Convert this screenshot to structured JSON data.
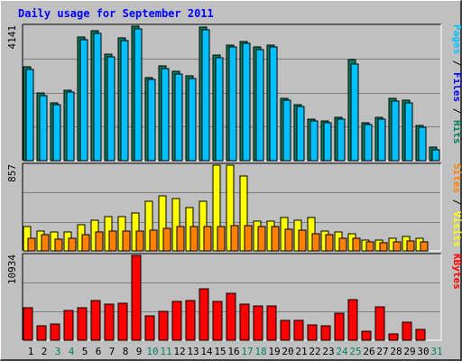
{
  "chart_data": [
    {
      "type": "bar",
      "title": "Daily usage for September 2011",
      "categories": [
        "1",
        "2",
        "3",
        "4",
        "5",
        "6",
        "7",
        "8",
        "9",
        "10",
        "11",
        "12",
        "13",
        "14",
        "15",
        "16",
        "17",
        "18",
        "19",
        "20",
        "21",
        "22",
        "23",
        "24",
        "25",
        "26",
        "27",
        "28",
        "29",
        "30",
        "31"
      ],
      "weekend_days": [
        "3",
        "4",
        "10",
        "11",
        "17",
        "18",
        "24",
        "25",
        "31"
      ],
      "y_tick_label": "4141",
      "ylim": [
        0,
        4141
      ],
      "legend": [
        "Pages",
        "Files",
        "Hits"
      ],
      "series": [
        {
          "name": "Hits",
          "color": "#00805c",
          "values": [
            2900,
            2090,
            1780,
            2180,
            3800,
            4000,
            3270,
            3790,
            4141,
            2570,
            2910,
            2750,
            2610,
            4100,
            3250,
            3570,
            3670,
            3500,
            3570,
            1930,
            1730,
            1280,
            1230,
            1340,
            3100,
            1180,
            1340,
            1910,
            1850,
            1090,
            420
          ]
        },
        {
          "name": "Files",
          "color": "#00c0ff",
          "values": [
            2810,
            2010,
            1710,
            2110,
            3730,
            3930,
            3190,
            3710,
            4060,
            2490,
            2840,
            2680,
            2540,
            4030,
            3180,
            3500,
            3600,
            3430,
            3500,
            1860,
            1660,
            1210,
            1160,
            1270,
            2960,
            1110,
            1270,
            1840,
            1780,
            1020,
            340
          ]
        }
      ],
      "grid": true
    },
    {
      "type": "bar",
      "categories": [
        "1",
        "2",
        "3",
        "4",
        "5",
        "6",
        "7",
        "8",
        "9",
        "10",
        "11",
        "12",
        "13",
        "14",
        "15",
        "16",
        "17",
        "18",
        "19",
        "20",
        "21",
        "22",
        "23",
        "24",
        "25",
        "26",
        "27",
        "28",
        "29",
        "30",
        "31"
      ],
      "y_tick_label": "857",
      "ylim": [
        0,
        857
      ],
      "legend": [
        "Sites",
        "Visits"
      ],
      "series": [
        {
          "name": "Visits",
          "color": "#ffff00",
          "values": [
            240,
            200,
            190,
            190,
            260,
            310,
            340,
            340,
            380,
            500,
            550,
            520,
            430,
            500,
            857,
            857,
            750,
            300,
            300,
            330,
            310,
            330,
            200,
            190,
            170,
            110,
            110,
            130,
            140,
            130,
            0
          ]
        },
        {
          "name": "Sites",
          "color": "#ff8000",
          "values": [
            130,
            160,
            120,
            130,
            160,
            190,
            200,
            200,
            200,
            210,
            230,
            240,
            240,
            240,
            240,
            250,
            250,
            240,
            240,
            220,
            210,
            170,
            160,
            130,
            130,
            90,
            80,
            90,
            100,
            90,
            0
          ]
        }
      ],
      "grid": true
    },
    {
      "type": "bar",
      "categories": [
        "1",
        "2",
        "3",
        "4",
        "5",
        "6",
        "7",
        "8",
        "9",
        "10",
        "11",
        "12",
        "13",
        "14",
        "15",
        "16",
        "17",
        "18",
        "19",
        "20",
        "21",
        "22",
        "23",
        "24",
        "25",
        "26",
        "27",
        "28",
        "29",
        "30",
        "31"
      ],
      "y_tick_label": "10934",
      "ylim": [
        0,
        10934
      ],
      "legend": [
        "KBytes"
      ],
      "series": [
        {
          "name": "KBytes",
          "color": "#ff0000",
          "values": [
            4200,
            1900,
            2100,
            3800,
            4200,
            5100,
            4700,
            4800,
            10934,
            3100,
            3700,
            5000,
            5100,
            6600,
            5000,
            6100,
            4700,
            4400,
            4400,
            2600,
            2600,
            2000,
            1900,
            3500,
            5200,
            1200,
            4300,
            800,
            2300,
            1400,
            0
          ]
        }
      ],
      "grid": true
    }
  ],
  "colors": {
    "background": "#c0c0c0",
    "title": "#0000ff",
    "weekday_label": "#000000",
    "weekend_label": "#00805c",
    "gridline": "#808080"
  }
}
